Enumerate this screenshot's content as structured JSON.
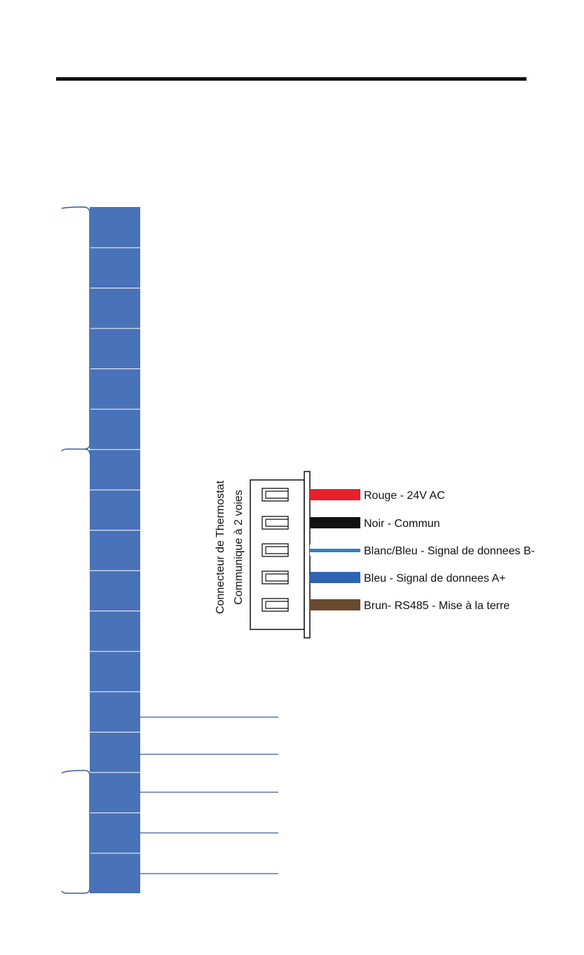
{
  "connector": {
    "title_lines": [
      "Connecteur de Thermostat",
      "Communique à 2 voies"
    ],
    "wires": [
      {
        "label": "Rouge - 24V AC"
      },
      {
        "label": "Noir - Commun"
      },
      {
        "label": "Blanc/Bleu - Signal de donnees B-"
      },
      {
        "label": "Bleu - Signal de donnees A+"
      },
      {
        "label": "Brun- RS485 - Mise à la terre"
      }
    ]
  }
}
